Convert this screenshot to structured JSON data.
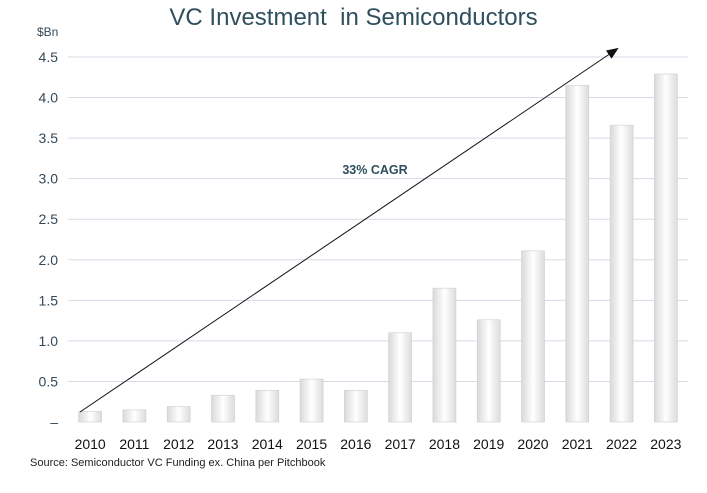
{
  "chart_data": {
    "type": "bar",
    "title": "VC Investment  in Semiconductors",
    "unit_label": "$Bn",
    "categories": [
      "2010",
      "2011",
      "2012",
      "2013",
      "2014",
      "2015",
      "2016",
      "2017",
      "2018",
      "2019",
      "2020",
      "2021",
      "2022",
      "2023"
    ],
    "values": [
      0.13,
      0.15,
      0.19,
      0.33,
      0.39,
      0.53,
      0.39,
      1.1,
      1.65,
      1.26,
      2.11,
      4.15,
      3.66,
      4.29
    ],
    "yticks": [
      "–",
      "0.5",
      "1.0",
      "1.5",
      "2.0",
      "2.5",
      "3.0",
      "3.5",
      "4.0",
      "4.5"
    ],
    "ylim": [
      0,
      4.5
    ],
    "grid": true,
    "annotation": "33% CAGR",
    "source": "Source: Semiconductor VC Funding ex. China per Pitchbook"
  }
}
